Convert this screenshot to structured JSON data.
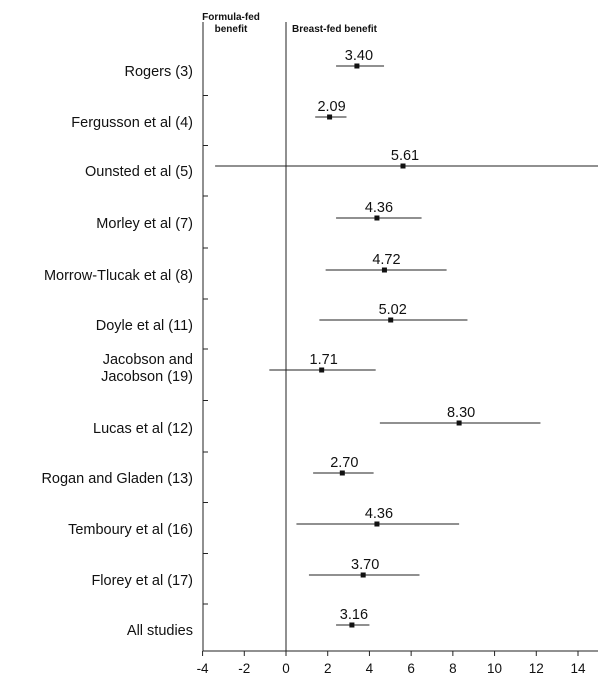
{
  "chart_data": {
    "type": "forest",
    "title": "",
    "xlabel": "",
    "ylabel": "",
    "header_left": [
      "Formula-fed",
      "benefit"
    ],
    "header_right": "Breast-fed benefit",
    "xlim": [
      -4,
      15
    ],
    "xticks": [
      -4,
      -2,
      0,
      2,
      4,
      6,
      8,
      10,
      12,
      14
    ],
    "xtick_labels": [
      "-4",
      "-2",
      "0",
      "2",
      "4",
      "6",
      "8",
      "10",
      "12",
      "14"
    ],
    "studies": [
      {
        "label": [
          "Rogers (3)"
        ],
        "value": 3.4,
        "value_label": "3.40",
        "ci": [
          2.4,
          4.7
        ]
      },
      {
        "label": [
          "Fergusson et al (4)"
        ],
        "value": 2.09,
        "value_label": "2.09",
        "ci": [
          1.4,
          2.9
        ]
      },
      {
        "label": [
          "Ounsted et al (5)"
        ],
        "value": 5.61,
        "value_label": "5.61",
        "ci": [
          -3.4,
          15.0
        ]
      },
      {
        "label": [
          "Morley et al (7)"
        ],
        "value": 4.36,
        "value_label": "4.36",
        "ci": [
          2.4,
          6.5
        ]
      },
      {
        "label": [
          "Morrow-Tlucak et al (8)"
        ],
        "value": 4.72,
        "value_label": "4.72",
        "ci": [
          1.9,
          7.7
        ]
      },
      {
        "label": [
          "Doyle et al (11)"
        ],
        "value": 5.02,
        "value_label": "5.02",
        "ci": [
          1.6,
          8.7
        ]
      },
      {
        "label": [
          "Jacobson and",
          "Jacobson (19)"
        ],
        "value": 1.71,
        "value_label": "1.71",
        "ci": [
          -0.8,
          4.3
        ]
      },
      {
        "label": [
          "Lucas et al (12)"
        ],
        "value": 8.3,
        "value_label": "8.30",
        "ci": [
          4.5,
          12.2
        ]
      },
      {
        "label": [
          "Rogan and Gladen (13)"
        ],
        "value": 2.7,
        "value_label": "2.70",
        "ci": [
          1.3,
          4.2
        ]
      },
      {
        "label": [
          "Temboury et al (16)"
        ],
        "value": 4.36,
        "value_label": "4.36",
        "ci": [
          0.5,
          8.3
        ]
      },
      {
        "label": [
          "Florey et al (17)"
        ],
        "value": 3.7,
        "value_label": "3.70",
        "ci": [
          1.1,
          6.4
        ]
      },
      {
        "label": [
          "All studies"
        ],
        "value": 3.16,
        "value_label": "3.16",
        "ci": [
          2.4,
          4.0
        ]
      }
    ]
  }
}
